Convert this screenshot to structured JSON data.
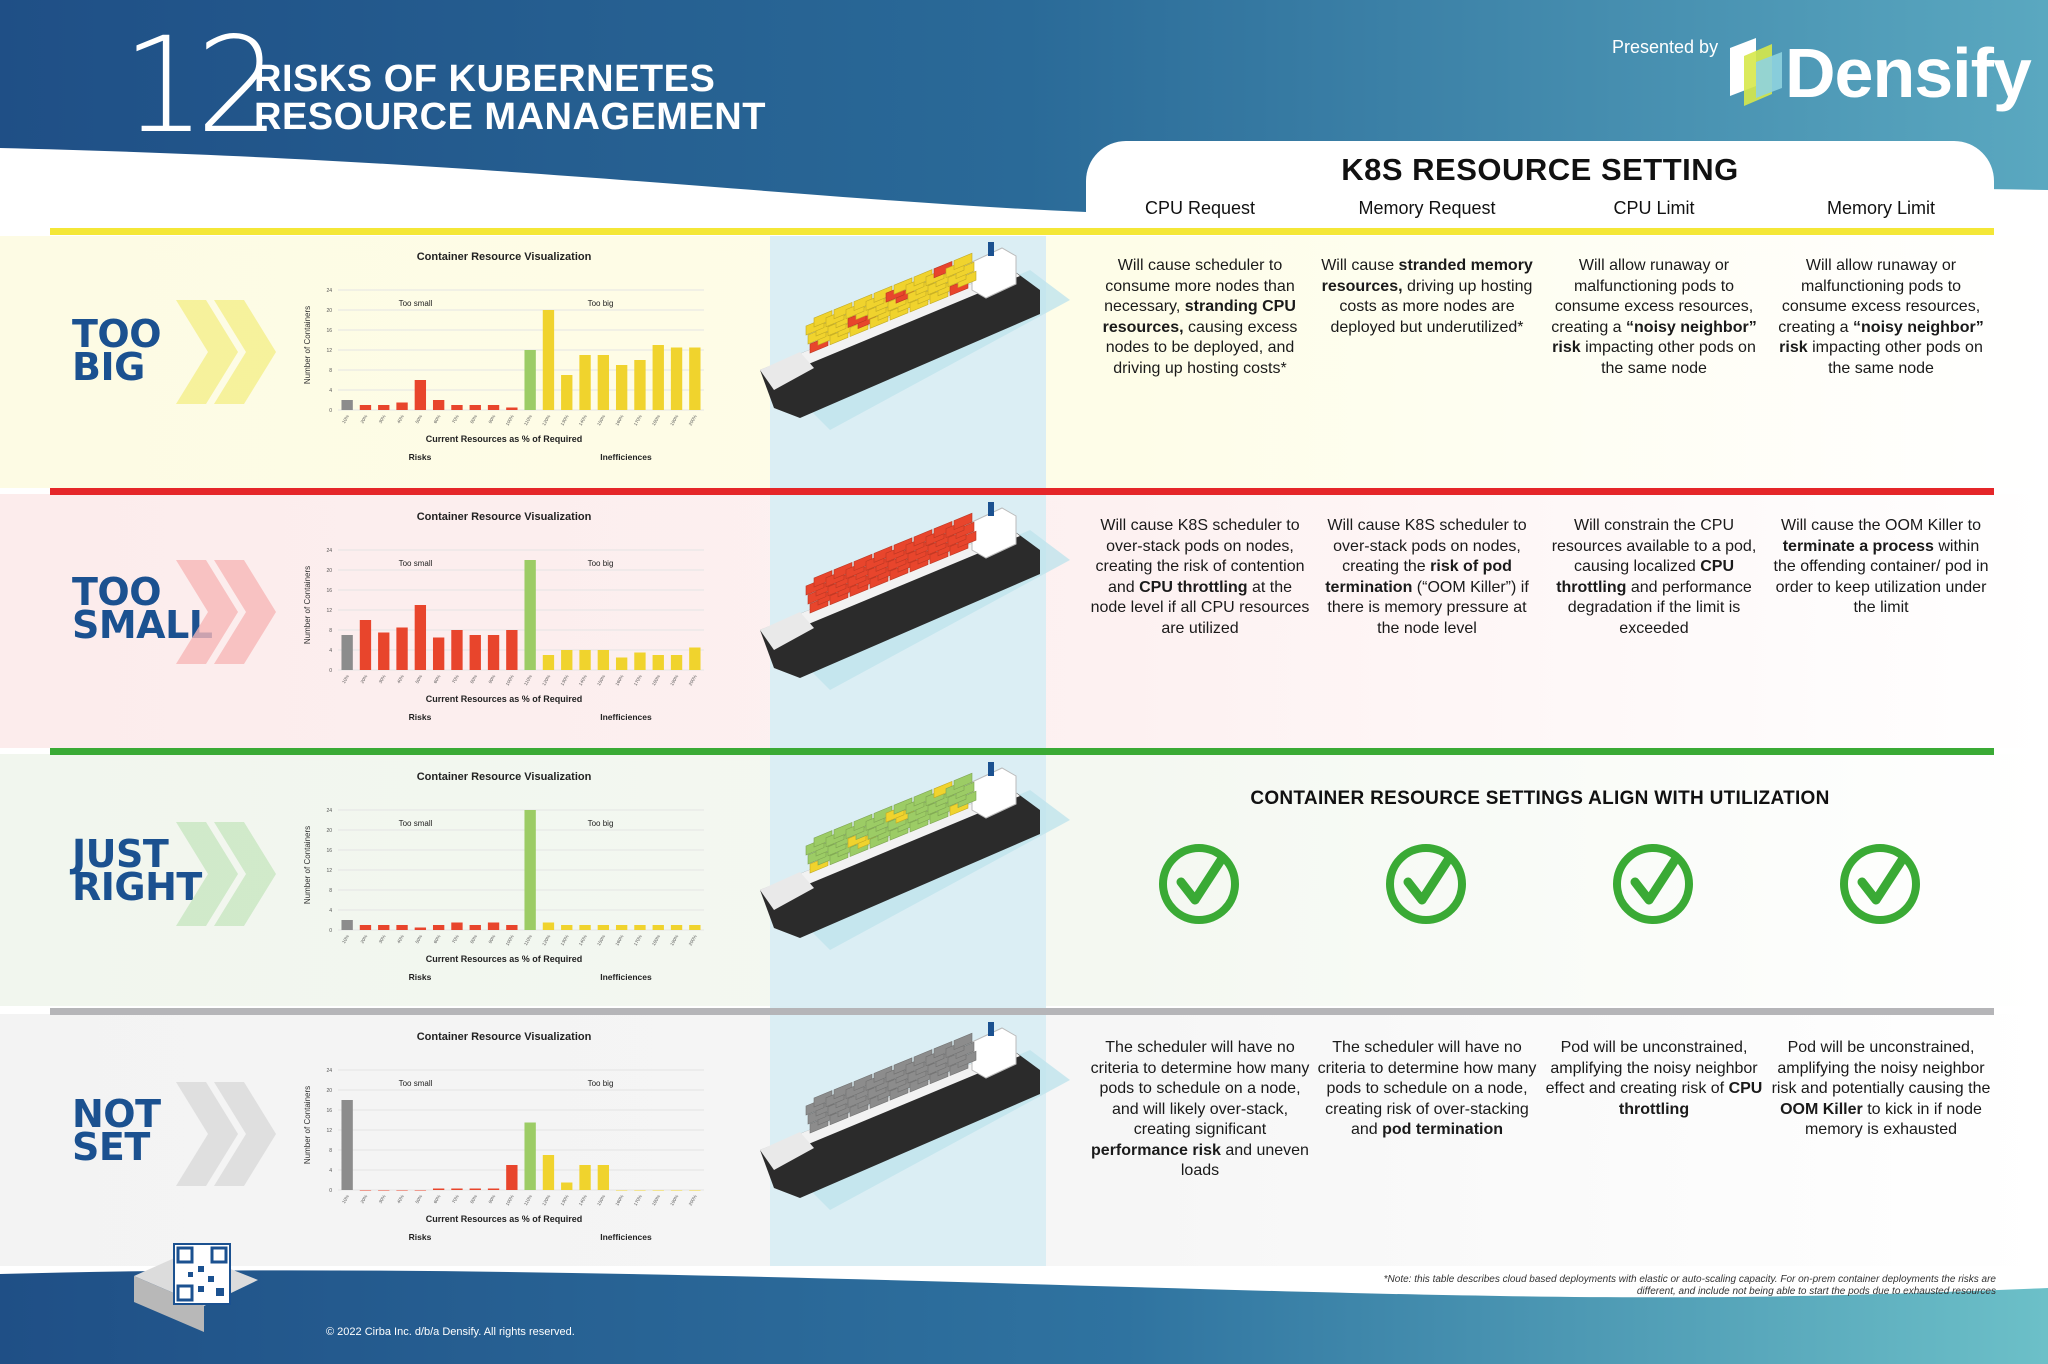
{
  "header": {
    "number": "12",
    "title_line1": "RISKS OF KUBERNETES",
    "title_line2": "RESOURCE MANAGEMENT",
    "presented_by": "Presented by",
    "brand": "Densify"
  },
  "settings": {
    "title": "K8S RESOURCE SETTING",
    "columns": [
      "CPU Request",
      "Memory Request",
      "CPU Limit",
      "Memory Limit"
    ]
  },
  "chart_common": {
    "title": "Container Resource Visualization",
    "ylabel": "Number of Containers",
    "xlabel": "Current Resources as % of Required",
    "too_small": "Too small",
    "too_big": "Too big",
    "risks": "Risks",
    "inefficiencies": "Inefficiences",
    "y_ticks": [
      "0",
      "4",
      "8",
      "12",
      "16",
      "20",
      "24"
    ],
    "x_ticks": [
      "10%",
      "20%",
      "30%",
      "40%",
      "50%",
      "60%",
      "70%",
      "80%",
      "90%",
      "100%",
      "110%",
      "120%",
      "130%",
      "140%",
      "150%",
      "160%",
      "170%",
      "180%",
      "190%",
      "200%"
    ]
  },
  "colors": {
    "risk_bar": "#e8452c",
    "ok_bar": "#9ccc65",
    "waste_bar": "#f0d32d",
    "unset_bar": "#8c8c8c",
    "row_too_big": "#f4e737",
    "row_too_small": "#e52629",
    "row_just_right": "#3aaa35",
    "row_not_set": "#b5b5b8",
    "label_blue": "#1b5190",
    "check_green": "#3aaa35"
  },
  "rows": [
    {
      "id": "too_big",
      "label_line1": "TOO",
      "label_line2": "BIG",
      "chart_data": {
        "type": "bar",
        "title": "Container Resource Visualization",
        "xlabel": "Current Resources as % of Required",
        "ylabel": "Number of Containers",
        "categories": [
          "10%",
          "20%",
          "30%",
          "40%",
          "50%",
          "60%",
          "70%",
          "80%",
          "90%",
          "100%",
          "110%",
          "120%",
          "130%",
          "140%",
          "150%",
          "160%",
          "170%",
          "180%",
          "190%",
          "200%"
        ],
        "values": [
          2,
          1,
          1,
          1.5,
          6,
          2,
          1,
          1,
          1,
          0.5,
          12,
          20,
          7,
          11,
          11,
          9,
          10,
          13,
          12.5,
          12.5
        ],
        "bar_kind": [
          "unset",
          "risk",
          "risk",
          "risk",
          "risk",
          "risk",
          "risk",
          "risk",
          "risk",
          "risk",
          "ok",
          "waste",
          "waste",
          "waste",
          "waste",
          "waste",
          "waste",
          "waste",
          "waste",
          "waste"
        ],
        "ylim": [
          0,
          26
        ]
      },
      "cells": [
        [
          {
            "t": "Will cause scheduler to consume more nodes than necessary, "
          },
          {
            "t": "stranding CPU resources,",
            "b": true
          },
          {
            "t": " causing excess nodes to be deployed, and driving up hosting costs*"
          }
        ],
        [
          {
            "t": "Will cause "
          },
          {
            "t": "stranded memory resources,",
            "b": true
          },
          {
            "t": " driving up hosting costs as more nodes are deployed but underutilized*"
          }
        ],
        [
          {
            "t": "Will allow runaway or malfunctioning pods to consume excess resources, creating a "
          },
          {
            "t": "“noisy neighbor” risk",
            "b": true
          },
          {
            "t": " impacting other pods on the same node"
          }
        ],
        [
          {
            "t": "Will allow runaway or malfunctioning pods to consume excess resources, creating a "
          },
          {
            "t": "“noisy neighbor” risk",
            "b": true
          },
          {
            "t": " impacting other pods on the same node"
          }
        ]
      ]
    },
    {
      "id": "too_small",
      "label_line1": "TOO",
      "label_line2": "SMALL",
      "chart_data": {
        "type": "bar",
        "title": "Container Resource Visualization",
        "xlabel": "Current Resources as % of Required",
        "ylabel": "Number of Containers",
        "categories": [
          "10%",
          "20%",
          "30%",
          "40%",
          "50%",
          "60%",
          "70%",
          "80%",
          "90%",
          "100%",
          "110%",
          "120%",
          "130%",
          "140%",
          "150%",
          "160%",
          "170%",
          "180%",
          "190%",
          "200%"
        ],
        "values": [
          7,
          10,
          7.5,
          8.5,
          13,
          6.5,
          8,
          7,
          7,
          8,
          22,
          3,
          4,
          4,
          4,
          2.5,
          3.5,
          3,
          3,
          4.5
        ],
        "bar_kind": [
          "unset",
          "risk",
          "risk",
          "risk",
          "risk",
          "risk",
          "risk",
          "risk",
          "risk",
          "risk",
          "ok",
          "waste",
          "waste",
          "waste",
          "waste",
          "waste",
          "waste",
          "waste",
          "waste",
          "waste"
        ],
        "ylim": [
          0,
          26
        ]
      },
      "cells": [
        [
          {
            "t": "Will cause K8S scheduler to over-stack pods on nodes, creating the risk of contention and "
          },
          {
            "t": "CPU throttling",
            "b": true
          },
          {
            "t": " at the node level if all CPU resources are utilized"
          }
        ],
        [
          {
            "t": "Will cause K8S scheduler to over-stack pods on nodes, creating the "
          },
          {
            "t": "risk of pod termination",
            "b": true
          },
          {
            "t": " (“OOM Killer”) if there is memory pressure at the node level"
          }
        ],
        [
          {
            "t": "Will constrain the CPU resources available to a pod, causing localized "
          },
          {
            "t": "CPU throttling",
            "b": true
          },
          {
            "t": " and performance degradation if the limit is exceeded"
          }
        ],
        [
          {
            "t": "Will cause the OOM Killer to "
          },
          {
            "t": "terminate a process",
            "b": true
          },
          {
            "t": " within the offending container/ pod in order to keep utilization under the limit"
          }
        ]
      ]
    },
    {
      "id": "just_right",
      "label_line1": "JUST",
      "label_line2": "RIGHT",
      "chart_data": {
        "type": "bar",
        "title": "Container Resource Visualization",
        "xlabel": "Current Resources as % of Required",
        "ylabel": "Number of Containers",
        "categories": [
          "10%",
          "20%",
          "30%",
          "40%",
          "50%",
          "60%",
          "70%",
          "80%",
          "90%",
          "100%",
          "110%",
          "120%",
          "130%",
          "140%",
          "150%",
          "160%",
          "170%",
          "180%",
          "190%",
          "200%"
        ],
        "values": [
          2,
          1,
          1,
          1,
          0.5,
          1,
          1.5,
          1,
          1.5,
          1,
          24,
          1.5,
          1,
          1,
          1,
          1,
          1,
          1,
          1,
          1
        ],
        "bar_kind": [
          "unset",
          "risk",
          "risk",
          "risk",
          "risk",
          "risk",
          "risk",
          "risk",
          "risk",
          "risk",
          "ok",
          "waste",
          "waste",
          "waste",
          "waste",
          "waste",
          "waste",
          "waste",
          "waste",
          "waste"
        ],
        "ylim": [
          0,
          26
        ]
      },
      "align_text": "CONTAINER RESOURCE SETTINGS ALIGN WITH UTILIZATION"
    },
    {
      "id": "not_set",
      "label_line1": "NOT",
      "label_line2": "SET",
      "chart_data": {
        "type": "bar",
        "title": "Container Resource Visualization",
        "xlabel": "Current Resources as % of Required",
        "ylabel": "Number of Containers",
        "categories": [
          "10%",
          "20%",
          "30%",
          "40%",
          "50%",
          "60%",
          "70%",
          "80%",
          "90%",
          "100%",
          "110%",
          "120%",
          "130%",
          "140%",
          "150%",
          "160%",
          "170%",
          "180%",
          "190%",
          "200%"
        ],
        "values": [
          18,
          0,
          0,
          0,
          0,
          0.3,
          0.3,
          0.3,
          0.3,
          5,
          13.5,
          7,
          1.5,
          5,
          5,
          0,
          0,
          0,
          0,
          0
        ],
        "bar_kind": [
          "unset",
          "risk",
          "risk",
          "risk",
          "risk",
          "risk",
          "risk",
          "risk",
          "risk",
          "risk",
          "ok",
          "waste",
          "waste",
          "waste",
          "waste",
          "waste",
          "waste",
          "waste",
          "waste",
          "waste"
        ],
        "ylim": [
          0,
          26
        ]
      },
      "cells": [
        [
          {
            "t": "The scheduler will have no criteria to determine how many pods to schedule on a node, and will likely over-stack, creating significant "
          },
          {
            "t": "performance risk",
            "b": true
          },
          {
            "t": " and uneven loads"
          }
        ],
        [
          {
            "t": "The scheduler will have no criteria to determine how many pods to schedule on a node, creating risk of over-stacking and "
          },
          {
            "t": "pod termination",
            "b": true
          }
        ],
        [
          {
            "t": "Pod will be unconstrained, amplifying the noisy neighbor effect and creating risk of "
          },
          {
            "t": "CPU throttling",
            "b": true
          }
        ],
        [
          {
            "t": "Pod will be unconstrained, amplifying the noisy neighbor risk and potentially causing the "
          },
          {
            "t": "OOM Killer",
            "b": true
          },
          {
            "t": " to kick in if node memory is exhausted"
          }
        ]
      ]
    }
  ],
  "footer": {
    "note": "*Note: this table describes cloud based deployments with elastic or auto-scaling capacity. For on-prem container deployments the risks are different, and include not being able to start the pods due to exhausted resources",
    "copyright": "© 2022 Cirba Inc. d/b/a Densify. All rights reserved."
  }
}
